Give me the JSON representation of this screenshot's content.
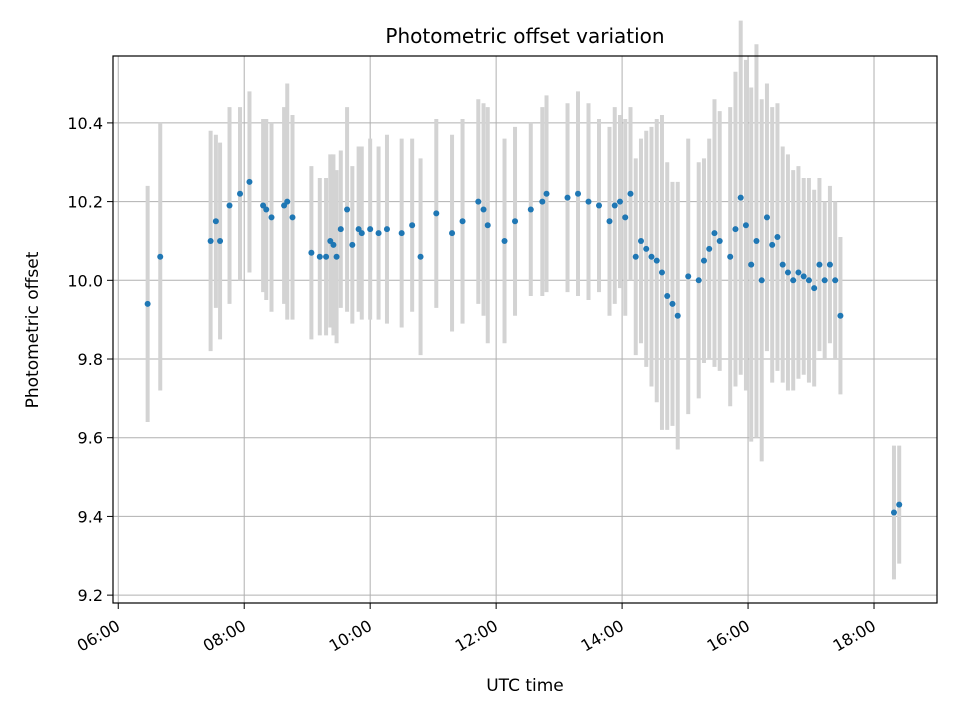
{
  "chart_data": {
    "type": "scatter",
    "title": "Photometric offset variation",
    "xlabel": "UTC time",
    "ylabel": "Photometric offset",
    "x_ticks": [
      "06:00",
      "08:00",
      "10:00",
      "12:00",
      "14:00",
      "16:00",
      "18:00"
    ],
    "y_ticks": [
      "9.2",
      "9.4",
      "9.6",
      "9.8",
      "10.0",
      "10.2",
      "10.4"
    ],
    "xlim": [
      "05:55",
      "19:00"
    ],
    "ylim": [
      9.18,
      10.57
    ],
    "grid": true,
    "colors": {
      "point": "#1f77b4",
      "errorbar": "#d3d3d3",
      "grid": "#b0b0b0"
    },
    "series": [
      {
        "x": [
          "06:28",
          "06:40",
          "07:28",
          "07:33",
          "07:37",
          "07:46",
          "07:56",
          "08:05",
          "08:18",
          "08:21",
          "08:26",
          "08:38",
          "08:41",
          "08:46",
          "09:04",
          "09:12",
          "09:18",
          "09:22",
          "09:25",
          "09:28",
          "09:32",
          "09:38",
          "09:43",
          "09:49",
          "09:52",
          "10:00",
          "10:08",
          "10:16",
          "10:30",
          "10:40",
          "10:48",
          "11:03",
          "11:18",
          "11:28",
          "11:43",
          "11:48",
          "11:52",
          "12:08",
          "12:18",
          "12:33",
          "12:44",
          "12:48",
          "13:08",
          "13:18",
          "13:28",
          "13:38",
          "13:48",
          "13:53",
          "13:58",
          "14:03",
          "14:08",
          "14:13",
          "14:18",
          "14:23",
          "14:28",
          "14:33",
          "14:38",
          "14:43",
          "14:48",
          "14:53",
          "15:03",
          "15:13",
          "15:18",
          "15:23",
          "15:28",
          "15:33",
          "15:43",
          "15:48",
          "15:53",
          "15:58",
          "16:03",
          "16:08",
          "16:13",
          "16:18",
          "16:23",
          "16:28",
          "16:33",
          "16:38",
          "16:43",
          "16:48",
          "16:53",
          "16:58",
          "17:03",
          "17:08",
          "17:13",
          "17:18",
          "17:23",
          "17:28",
          "18:19",
          "18:24"
        ],
        "y": [
          9.94,
          10.06,
          10.1,
          10.15,
          10.1,
          10.19,
          10.22,
          10.25,
          10.19,
          10.18,
          10.16,
          10.19,
          10.2,
          10.16,
          10.07,
          10.06,
          10.06,
          10.1,
          10.09,
          10.06,
          10.13,
          10.18,
          10.09,
          10.13,
          10.12,
          10.13,
          10.12,
          10.13,
          10.12,
          10.14,
          10.06,
          10.17,
          10.12,
          10.15,
          10.2,
          10.18,
          10.14,
          10.1,
          10.15,
          10.18,
          10.2,
          10.22,
          10.21,
          10.22,
          10.2,
          10.19,
          10.15,
          10.19,
          10.2,
          10.16,
          10.22,
          10.06,
          10.1,
          10.08,
          10.06,
          10.05,
          10.02,
          9.96,
          9.94,
          9.91,
          10.01,
          10.0,
          10.05,
          10.08,
          10.12,
          10.1,
          10.06,
          10.13,
          10.21,
          10.14,
          10.04,
          10.1,
          10.0,
          10.16,
          10.09,
          10.11,
          10.04,
          10.02,
          10.0,
          10.02,
          10.01,
          10.0,
          9.98,
          10.04,
          10.0,
          10.04,
          10.0,
          9.91,
          9.41,
          9.43
        ],
        "err": [
          0.3,
          0.34,
          0.28,
          0.22,
          0.25,
          0.25,
          0.22,
          0.23,
          0.22,
          0.23,
          0.24,
          0.25,
          0.3,
          0.26,
          0.22,
          0.2,
          0.2,
          0.22,
          0.23,
          0.22,
          0.2,
          0.26,
          0.2,
          0.21,
          0.22,
          0.23,
          0.22,
          0.24,
          0.24,
          0.22,
          0.25,
          0.24,
          0.25,
          0.26,
          0.26,
          0.27,
          0.3,
          0.26,
          0.24,
          0.22,
          0.24,
          0.25,
          0.24,
          0.26,
          0.25,
          0.22,
          0.24,
          0.25,
          0.22,
          0.25,
          0.22,
          0.25,
          0.26,
          0.3,
          0.33,
          0.36,
          0.4,
          0.34,
          0.31,
          0.34,
          0.35,
          0.3,
          0.26,
          0.28,
          0.34,
          0.33,
          0.38,
          0.4,
          0.45,
          0.42,
          0.45,
          0.5,
          0.46,
          0.34,
          0.35,
          0.34,
          0.3,
          0.3,
          0.28,
          0.27,
          0.25,
          0.26,
          0.25,
          0.22,
          0.2,
          0.2,
          0.2,
          0.2,
          0.17,
          0.15
        ]
      }
    ]
  }
}
